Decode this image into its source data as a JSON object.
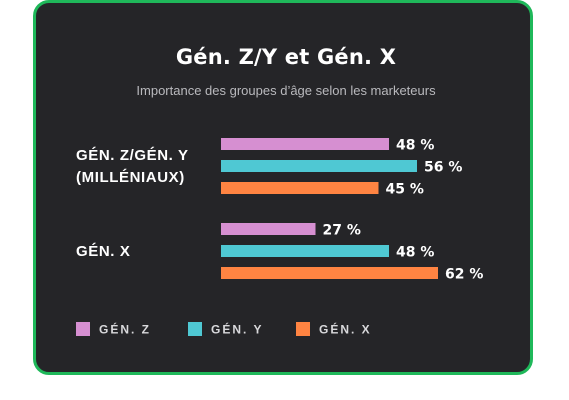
{
  "chart_data": {
    "type": "bar",
    "orientation": "horizontal",
    "title": "Gén. Z/Y et Gén. X",
    "subtitle": "Importance des groupes d’âge selon les marketeurs",
    "categories": [
      {
        "lines": [
          "GÉN. Z/GÉN. Y",
          "(MILLÉNIAUX)"
        ]
      },
      {
        "lines": [
          "GÉN. X"
        ]
      }
    ],
    "series": [
      {
        "name": "GÉN. Z",
        "color": "#d68fd1",
        "values": [
          48,
          27
        ]
      },
      {
        "name": "GÉN. Y",
        "color": "#4fc8d3",
        "values": [
          56,
          48
        ]
      },
      {
        "name": "GÉN. X",
        "color": "#ff8442",
        "values": [
          45,
          62
        ]
      }
    ],
    "value_suffix": " %",
    "xlim": [
      0,
      100
    ],
    "grid": false,
    "legend_position": "bottom"
  }
}
